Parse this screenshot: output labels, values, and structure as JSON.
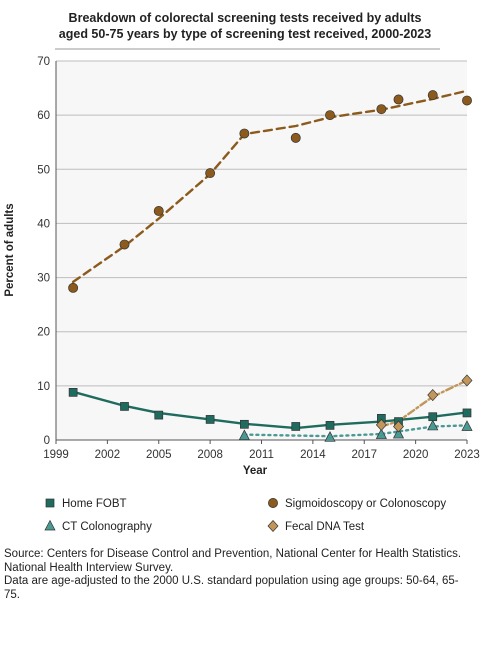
{
  "chart_data": {
    "type": "line",
    "title_lines": [
      "Breakdown of colorectal screening tests received by adults",
      "aged 50-75 years by type of screening test received, 2000-2023"
    ],
    "xlabel": "Year",
    "ylabel": "Percent of adults",
    "xlim": [
      1999,
      2023
    ],
    "ylim": [
      0,
      70
    ],
    "xticks": [
      1999,
      2002,
      2005,
      2008,
      2011,
      2014,
      2017,
      2020,
      2023
    ],
    "yticks": [
      0,
      10,
      20,
      30,
      40,
      50,
      60,
      70
    ],
    "grid": "horizontal",
    "legend_position": "bottom",
    "series": [
      {
        "name": "Home FOBT",
        "color": "#1f6b5e",
        "marker": "square",
        "x": [
          2000,
          2003,
          2005,
          2008,
          2010,
          2013,
          2015,
          2018,
          2019,
          2021,
          2023
        ],
        "y": [
          8.8,
          6.2,
          4.6,
          3.8,
          2.9,
          2.5,
          2.7,
          4.0,
          3.4,
          4.3,
          5.0
        ],
        "trend": {
          "style": "solid",
          "x": [
            2000,
            2003,
            2005,
            2008,
            2010,
            2013,
            2015,
            2018,
            2021,
            2023
          ],
          "y": [
            8.9,
            6.3,
            5.0,
            3.8,
            3.0,
            2.2,
            2.8,
            3.4,
            4.3,
            5.1
          ]
        }
      },
      {
        "name": "Sigmoidoscopy or Colonoscopy",
        "color": "#8b5a1c",
        "marker": "circle",
        "x": [
          2000,
          2003,
          2005,
          2008,
          2010,
          2013,
          2015,
          2018,
          2019,
          2021,
          2023
        ],
        "y": [
          28.1,
          36.1,
          42.3,
          49.3,
          56.6,
          55.8,
          60.0,
          61.1,
          62.9,
          63.7,
          62.7
        ],
        "trend": {
          "style": "dashed",
          "x": [
            2000,
            2003,
            2005,
            2008,
            2010,
            2013,
            2015,
            2018,
            2021,
            2023
          ],
          "y": [
            29.2,
            35.8,
            40.9,
            49.1,
            56.5,
            58.0,
            59.6,
            61.0,
            63.0,
            64.5
          ]
        }
      },
      {
        "name": "CT Colonography",
        "color": "#4a9a94",
        "marker": "triangle",
        "x": [
          2010,
          2015,
          2018,
          2019,
          2021,
          2023
        ],
        "y": [
          0.8,
          0.5,
          1.0,
          1.1,
          2.6,
          2.5
        ],
        "trend": {
          "style": "dotted",
          "x": [
            2010,
            2015,
            2018,
            2021,
            2023
          ],
          "y": [
            1.0,
            0.7,
            1.1,
            2.5,
            2.7
          ]
        }
      },
      {
        "name": "Fecal DNA Test",
        "color": "#c2965a",
        "marker": "diamond",
        "x": [
          2018,
          2019,
          2021,
          2023
        ],
        "y": [
          2.8,
          2.5,
          8.3,
          11.0
        ],
        "trend": {
          "style": "dashdot",
          "x": [
            2018,
            2019,
            2021,
            2023
          ],
          "y": [
            2.5,
            3.5,
            8.0,
            11.0
          ]
        }
      }
    ]
  },
  "source_lines": [
    "Source: Centers for Disease Control and Prevention, National Center for Health Statistics.",
    "National Health Interview Survey.",
    "Data are age-adjusted to the 2000 U.S. standard population using age groups: 50-64, 65-",
    "75."
  ]
}
